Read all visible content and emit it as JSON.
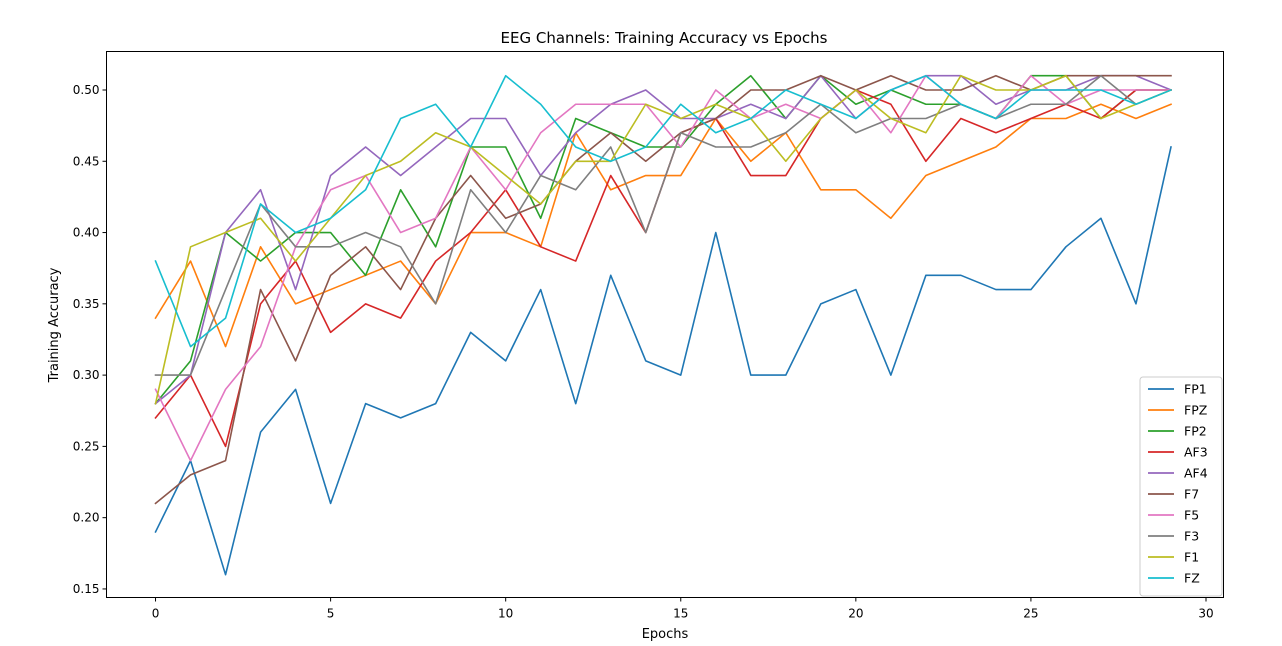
{
  "chart_data": {
    "type": "line",
    "title": "EEG Channels: Training Accuracy vs Epochs",
    "xlabel": "Epochs",
    "ylabel": "Training Accuracy",
    "xlim": [
      -1.4,
      30.5
    ],
    "ylim": [
      0.144,
      0.527
    ],
    "xticks": [
      0,
      5,
      10,
      15,
      20,
      25,
      30
    ],
    "yticks": [
      0.15,
      0.2,
      0.25,
      0.3,
      0.35,
      0.4,
      0.45,
      0.5
    ],
    "grid": false,
    "legend_position": "bottom-right",
    "x": [
      0,
      1,
      2,
      3,
      4,
      5,
      6,
      7,
      8,
      9,
      10,
      11,
      12,
      13,
      14,
      15,
      16,
      17,
      18,
      19,
      20,
      21,
      22,
      23,
      24,
      25,
      26,
      27,
      28,
      29
    ],
    "series": [
      {
        "name": "FP1",
        "color": "#1f77b4",
        "values": [
          0.19,
          0.24,
          0.16,
          0.26,
          0.29,
          0.21,
          0.28,
          0.27,
          0.28,
          0.33,
          0.31,
          0.36,
          0.28,
          0.37,
          0.31,
          0.3,
          0.4,
          0.3,
          0.3,
          0.35,
          0.36,
          0.3,
          0.37,
          0.37,
          0.36,
          0.36,
          0.39,
          0.41,
          0.35,
          0.46
        ]
      },
      {
        "name": "FPZ",
        "color": "#ff7f0e",
        "values": [
          0.34,
          0.38,
          0.32,
          0.39,
          0.35,
          0.36,
          0.37,
          0.38,
          0.35,
          0.4,
          0.4,
          0.39,
          0.47,
          0.43,
          0.44,
          0.44,
          0.48,
          0.45,
          0.47,
          0.43,
          0.43,
          0.41,
          0.44,
          0.45,
          0.46,
          0.48,
          0.48,
          0.49,
          0.48,
          0.49
        ]
      },
      {
        "name": "FP2",
        "color": "#2ca02c",
        "values": [
          0.28,
          0.31,
          0.4,
          0.38,
          0.4,
          0.4,
          0.37,
          0.43,
          0.39,
          0.46,
          0.46,
          0.41,
          0.48,
          0.47,
          0.46,
          0.46,
          0.49,
          0.51,
          0.48,
          0.51,
          0.49,
          0.5,
          0.49,
          0.49,
          0.48,
          0.51,
          0.51,
          0.48,
          0.5,
          0.5
        ]
      },
      {
        "name": "AF3",
        "color": "#d62728",
        "values": [
          0.27,
          0.3,
          0.25,
          0.35,
          0.38,
          0.33,
          0.35,
          0.34,
          0.38,
          0.4,
          0.43,
          0.39,
          0.38,
          0.44,
          0.4,
          0.47,
          0.48,
          0.44,
          0.44,
          0.48,
          0.5,
          0.49,
          0.45,
          0.48,
          0.47,
          0.48,
          0.49,
          0.48,
          0.5,
          0.5
        ]
      },
      {
        "name": "AF4",
        "color": "#9467bd",
        "values": [
          0.28,
          0.3,
          0.4,
          0.43,
          0.36,
          0.44,
          0.46,
          0.44,
          0.46,
          0.48,
          0.48,
          0.44,
          0.47,
          0.49,
          0.5,
          0.48,
          0.48,
          0.49,
          0.48,
          0.51,
          0.48,
          0.5,
          0.51,
          0.51,
          0.49,
          0.5,
          0.5,
          0.51,
          0.51,
          0.5
        ]
      },
      {
        "name": "F7",
        "color": "#8c564b",
        "values": [
          0.21,
          0.23,
          0.24,
          0.36,
          0.31,
          0.37,
          0.39,
          0.36,
          0.41,
          0.44,
          0.41,
          0.42,
          0.45,
          0.47,
          0.45,
          0.47,
          0.48,
          0.5,
          0.5,
          0.51,
          0.5,
          0.51,
          0.5,
          0.5,
          0.51,
          0.5,
          0.51,
          0.51,
          0.51,
          0.51
        ]
      },
      {
        "name": "F5",
        "color": "#e377c2",
        "values": [
          0.29,
          0.24,
          0.29,
          0.32,
          0.39,
          0.43,
          0.44,
          0.4,
          0.41,
          0.46,
          0.43,
          0.47,
          0.49,
          0.49,
          0.49,
          0.46,
          0.5,
          0.48,
          0.49,
          0.48,
          0.5,
          0.47,
          0.51,
          0.49,
          0.48,
          0.51,
          0.49,
          0.5,
          0.5,
          0.5
        ]
      },
      {
        "name": "F3",
        "color": "#7f7f7f",
        "values": [
          0.3,
          0.3,
          0.36,
          0.42,
          0.39,
          0.39,
          0.4,
          0.39,
          0.35,
          0.43,
          0.4,
          0.44,
          0.43,
          0.46,
          0.4,
          0.47,
          0.46,
          0.46,
          0.47,
          0.49,
          0.47,
          0.48,
          0.48,
          0.49,
          0.48,
          0.49,
          0.49,
          0.51,
          0.49,
          0.5
        ]
      },
      {
        "name": "F1",
        "color": "#bcbd22",
        "values": [
          0.28,
          0.39,
          0.4,
          0.41,
          0.38,
          0.41,
          0.44,
          0.45,
          0.47,
          0.46,
          0.44,
          0.42,
          0.45,
          0.45,
          0.49,
          0.48,
          0.49,
          0.48,
          0.45,
          0.48,
          0.5,
          0.48,
          0.47,
          0.51,
          0.5,
          0.5,
          0.51,
          0.48,
          0.49,
          0.5
        ]
      },
      {
        "name": "FZ",
        "color": "#17becf",
        "values": [
          0.38,
          0.32,
          0.34,
          0.42,
          0.4,
          0.41,
          0.43,
          0.48,
          0.49,
          0.46,
          0.51,
          0.49,
          0.46,
          0.45,
          0.46,
          0.49,
          0.47,
          0.48,
          0.5,
          0.49,
          0.48,
          0.5,
          0.51,
          0.49,
          0.48,
          0.5,
          0.5,
          0.5,
          0.49,
          0.5
        ]
      }
    ]
  }
}
